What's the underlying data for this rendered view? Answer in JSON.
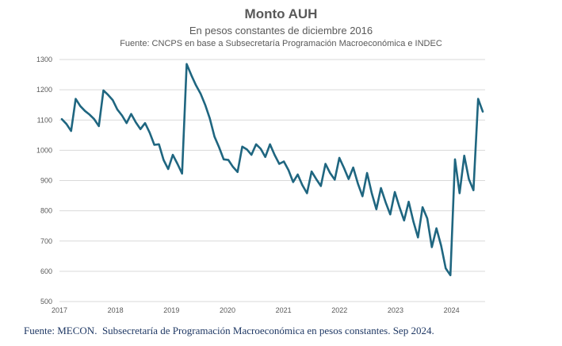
{
  "chart_data": {
    "type": "line",
    "title": "Monto AUH",
    "subtitle": "En pesos constantes de diciembre 2016",
    "source": "Fuente: CNCPS en base a Subsecretaría Programación Macroeconómica e INDEC",
    "xlabel": "",
    "ylabel": "",
    "ylim": [
      500,
      1300
    ],
    "yticks": [
      500,
      600,
      700,
      800,
      900,
      1000,
      1100,
      1200,
      1300
    ],
    "xticks": [
      "2017",
      "2018",
      "2019",
      "2020",
      "2021",
      "2022",
      "2023",
      "2024"
    ],
    "grid": true,
    "legend": "none",
    "series_color": "#1f6680",
    "series": [
      {
        "values": [
          1103,
          1087,
          1064,
          1170,
          1146,
          1130,
          1118,
          1103,
          1080,
          1198,
          1183,
          1166,
          1135,
          1115,
          1090,
          1120,
          1092,
          1070,
          1090,
          1058,
          1018,
          1020,
          968,
          938,
          985,
          955,
          923,
          1285,
          1248,
          1215,
          1187,
          1150,
          1105,
          1045,
          1010,
          970,
          968,
          945,
          928,
          1012,
          1003,
          985,
          1020,
          1005,
          978,
          1020,
          985,
          955,
          963,
          935,
          895,
          920,
          885,
          858,
          930,
          905,
          882,
          955,
          925,
          903,
          975,
          942,
          905,
          943,
          890,
          848,
          925,
          858,
          805,
          875,
          828,
          788,
          862,
          812,
          768,
          830,
          765,
          712,
          812,
          775,
          680,
          742,
          685,
          610,
          587,
          970,
          858,
          982,
          905,
          868,
          1170,
          1128
        ]
      }
    ]
  },
  "footer": "Fuente: MECON.  Subsecretaría de Programación Macroeconómica en pesos constantes. Sep 2024."
}
